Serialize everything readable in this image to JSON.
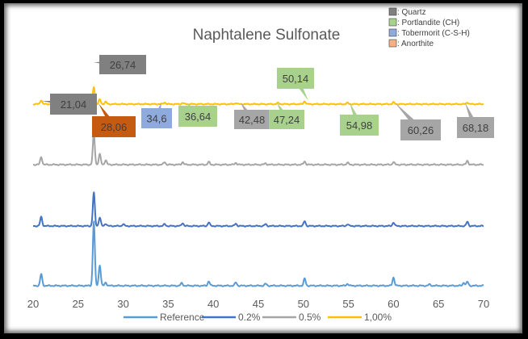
{
  "chart_data": {
    "type": "line",
    "title": "Naphtalene Sulfonate",
    "xlabel": "",
    "ylabel": "",
    "xlim": [
      20,
      70
    ],
    "x_ticks": [
      "20",
      "25",
      "30",
      "35",
      "40",
      "45",
      "50",
      "55",
      "60",
      "65",
      "70"
    ],
    "y_axis": "hidden (stacked offset traces)",
    "grid": false,
    "legend_position": "bottom",
    "series": [
      {
        "name": "Reference",
        "color": "#5b9bd5",
        "peaks": [
          {
            "x": 20.9,
            "h": 0.18
          },
          {
            "x": 26.74,
            "h": 1.0
          },
          {
            "x": 27.4,
            "h": 0.32
          },
          {
            "x": 28.06,
            "h": 0.05
          },
          {
            "x": 36.5,
            "h": 0.04
          },
          {
            "x": 39.5,
            "h": 0.07
          },
          {
            "x": 42.5,
            "h": 0.05
          },
          {
            "x": 45.8,
            "h": 0.03
          },
          {
            "x": 50.14,
            "h": 0.11
          },
          {
            "x": 54.9,
            "h": 0.03
          },
          {
            "x": 60.0,
            "h": 0.13
          },
          {
            "x": 64.0,
            "h": 0.02
          },
          {
            "x": 67.8,
            "h": 0.05
          },
          {
            "x": 68.2,
            "h": 0.06
          }
        ]
      },
      {
        "name": "0.2%",
        "color": "#4472c4",
        "peaks": [
          {
            "x": 20.9,
            "h": 0.15
          },
          {
            "x": 26.74,
            "h": 0.55
          },
          {
            "x": 27.4,
            "h": 0.14
          },
          {
            "x": 28.06,
            "h": 0.04
          },
          {
            "x": 30.0,
            "h": 0.03
          },
          {
            "x": 34.6,
            "h": 0.03
          },
          {
            "x": 36.6,
            "h": 0.05
          },
          {
            "x": 39.5,
            "h": 0.06
          },
          {
            "x": 42.5,
            "h": 0.04
          },
          {
            "x": 45.8,
            "h": 0.03
          },
          {
            "x": 50.14,
            "h": 0.08
          },
          {
            "x": 54.9,
            "h": 0.03
          },
          {
            "x": 60.0,
            "h": 0.06
          },
          {
            "x": 68.2,
            "h": 0.07
          }
        ]
      },
      {
        "name": "0.5%",
        "color": "#a5a5a5",
        "peaks": [
          {
            "x": 20.9,
            "h": 0.12
          },
          {
            "x": 26.74,
            "h": 0.48
          },
          {
            "x": 27.4,
            "h": 0.16
          },
          {
            "x": 28.06,
            "h": 0.07
          },
          {
            "x": 34.6,
            "h": 0.04
          },
          {
            "x": 36.6,
            "h": 0.04
          },
          {
            "x": 39.5,
            "h": 0.04
          },
          {
            "x": 42.5,
            "h": 0.03
          },
          {
            "x": 45.8,
            "h": 0.02
          },
          {
            "x": 50.14,
            "h": 0.05
          },
          {
            "x": 54.9,
            "h": 0.03
          },
          {
            "x": 60.0,
            "h": 0.04
          },
          {
            "x": 68.2,
            "h": 0.06
          }
        ]
      },
      {
        "name": "1,00%",
        "color": "#ffc000",
        "peaks": [
          {
            "x": 20.9,
            "h": 0.07
          },
          {
            "x": 26.74,
            "h": 0.3
          },
          {
            "x": 27.4,
            "h": 0.08
          },
          {
            "x": 28.06,
            "h": 0.04
          },
          {
            "x": 34.6,
            "h": 0.03
          },
          {
            "x": 36.6,
            "h": 0.02
          },
          {
            "x": 42.5,
            "h": 0.02
          },
          {
            "x": 47.2,
            "h": 0.02
          },
          {
            "x": 50.14,
            "h": 0.05
          },
          {
            "x": 54.9,
            "h": 0.02
          },
          {
            "x": 60.0,
            "h": 0.03
          },
          {
            "x": 68.2,
            "h": 0.03
          }
        ]
      }
    ],
    "phase_key": [
      {
        "label": ": Quartz",
        "color": "#808080"
      },
      {
        "label": ": Portlandite (CH)",
        "color": "#a9d18e"
      },
      {
        "label": ": Tobermorit (C-S-H)",
        "color": "#8faadc"
      },
      {
        "label": ": Anorthite",
        "color": "#f4b183"
      }
    ],
    "annotations": [
      {
        "text": "21,04",
        "color": "#808080"
      },
      {
        "text": "26,74",
        "color": "#808080"
      },
      {
        "text": "28,06",
        "color": "#c55a11"
      },
      {
        "text": "34,6",
        "color": "#8faadc"
      },
      {
        "text": "36,64",
        "color": "#a9d18e"
      },
      {
        "text": "42,48",
        "color": "#a6a6a6"
      },
      {
        "text": "47,24",
        "color": "#a9d18e"
      },
      {
        "text": "50,14",
        "color": "#a9d18e"
      },
      {
        "text": "54,98",
        "color": "#a9d18e"
      },
      {
        "text": "60,26",
        "color": "#a6a6a6"
      },
      {
        "text": "68,18",
        "color": "#a6a6a6"
      }
    ]
  }
}
